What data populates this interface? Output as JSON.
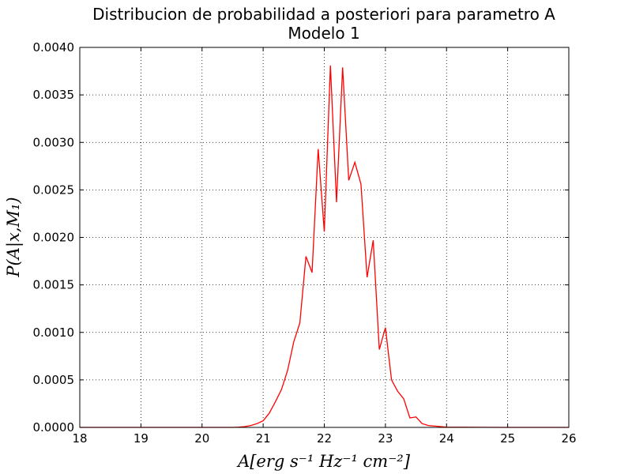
{
  "chart_data": {
    "type": "line",
    "title": "Distribucion de probabilidad a posteriori para parametro A",
    "subtitle": "Modelo 1",
    "xlabel": "A[erg s⁻¹ Hz⁻¹ cm⁻²]",
    "ylabel": "P(A|x,M₁)",
    "xlim": [
      18,
      26
    ],
    "ylim": [
      0,
      0.004
    ],
    "x_ticks": [
      "18",
      "19",
      "20",
      "21",
      "22",
      "23",
      "24",
      "25",
      "26"
    ],
    "y_ticks": [
      "0.0000",
      "0.0005",
      "0.0010",
      "0.0015",
      "0.0020",
      "0.0025",
      "0.0030",
      "0.0035",
      "0.0040"
    ],
    "grid": true,
    "series_color": "#ff0000",
    "x": [
      18.0,
      18.5,
      19.0,
      19.5,
      20.0,
      20.5,
      20.6,
      20.7,
      20.8,
      20.9,
      21.0,
      21.1,
      21.2,
      21.3,
      21.4,
      21.5,
      21.6,
      21.7,
      21.8,
      21.9,
      22.0,
      22.1,
      22.2,
      22.3,
      22.4,
      22.5,
      22.6,
      22.7,
      22.8,
      22.9,
      23.0,
      23.1,
      23.2,
      23.3,
      23.4,
      23.5,
      23.6,
      23.7,
      24.0,
      25.0,
      26.0
    ],
    "y": [
      0.0,
      0.0,
      0.0,
      0.0,
      0.0,
      0.0,
      3e-06,
      8e-06,
      2e-05,
      4e-05,
      7e-05,
      0.00015,
      0.00027,
      0.0004,
      0.0006,
      0.0009,
      0.0011,
      0.0018,
      0.00163,
      0.00293,
      0.00206,
      0.00381,
      0.00237,
      0.00379,
      0.0026,
      0.00279,
      0.00256,
      0.00158,
      0.00197,
      0.00082,
      0.00105,
      0.0005,
      0.00038,
      0.0003,
      0.0001,
      0.00011,
      4e-05,
      2e-05,
      3e-06,
      0.0,
      0.0
    ]
  }
}
